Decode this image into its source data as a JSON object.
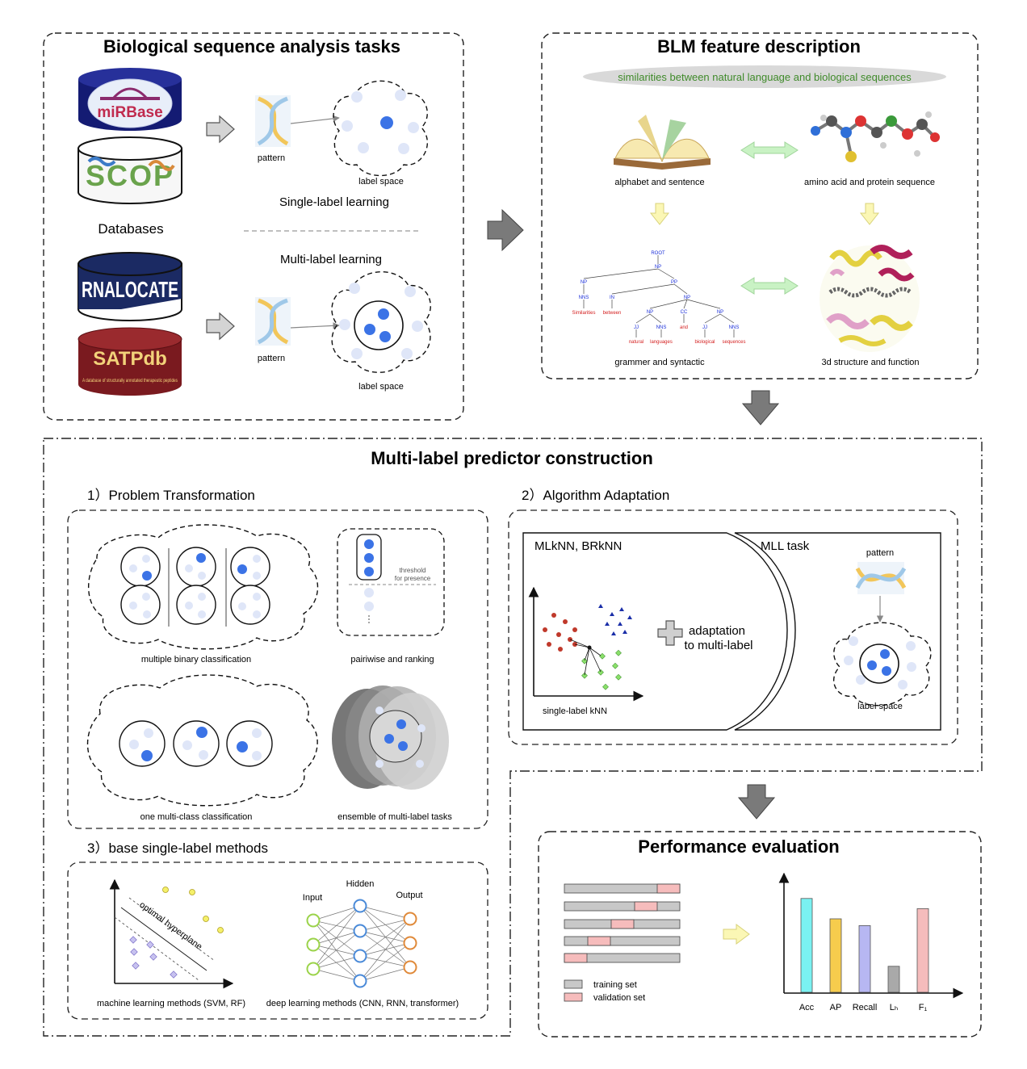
{
  "colors": {
    "dark_blue": "#3b73e6",
    "light_blue": "#dfe6f8",
    "arrow_gray": "#777777",
    "green_arrow": "#c9f2c4",
    "yellow_arrow": "#fbf7b5",
    "train_gray": "#c8c8c8",
    "valid_pink": "#f6bcbc",
    "bar_colors": [
      "#7af1f1",
      "#f6cc4d",
      "#b7b7f2",
      "#a9a9a9",
      "#f5bcbc"
    ]
  },
  "tasks": {
    "title": "Biological sequence analysis tasks",
    "databases": {
      "heading": "Databases",
      "mirbase": "miRBase",
      "scop": "SCOP",
      "rnalocate": "RNALOCATE",
      "satpdb": "SATPdb",
      "satpdb_caption": "A database of structurally annotated therapeutic peptides"
    },
    "single_pattern": "pattern",
    "single_space": "label space",
    "single_caption": "Single-label learning",
    "multi_caption": "Multi-label learning",
    "multi_pattern": "pattern",
    "multi_space": "label space"
  },
  "blm": {
    "title": "BLM feature description",
    "banner": "similarities between natural language and biological sequences",
    "book_label": "alphabet and sentence",
    "molecule_label": "amino acid and protein sequence",
    "grammar_label": "grammer and syntactic",
    "structure_label": "3d structure and function",
    "tree": {
      "root": "ROOT",
      "np": "NP",
      "pp": "PP",
      "np2": "NP",
      "nns": "NNS",
      "in": "IN",
      "np3": "NP",
      "cc": "CC",
      "np4": "NP",
      "jj": "JJ",
      "nns2": "NNS",
      "jj2": "JJ",
      "nns3": "NNS",
      "w1": "Similarities",
      "w2": "between",
      "w3": "natural",
      "w4": "languages",
      "w5": "and",
      "w6": "biological",
      "w7": "sequences"
    }
  },
  "predictor": {
    "title": "Multi-label predictor construction",
    "pt": {
      "heading": "1）Problem Transformation",
      "binary": "multiple binary classification",
      "pairwise": "pairiwise and ranking",
      "threshold": [
        "threshold",
        "for presence"
      ],
      "multiclass": "one multi-class classification",
      "ensemble": "ensemble of multi-label tasks"
    },
    "aa": {
      "heading": "2）Algorithm Adaptation",
      "methods": "MLkNN, BRkNN",
      "adaptation": [
        "adaptation",
        "to multi-label"
      ],
      "knn_label": "single-label kNN",
      "mll_task": "MLL task",
      "pattern": "pattern",
      "space": "label space"
    },
    "base": {
      "heading": "3）base single-label methods",
      "hyperplane": "optimal hyperplane",
      "ml_caption": "machine learning methods (SVM, RF)",
      "input": "Input",
      "hidden": "Hidden",
      "output": "Output",
      "dl_caption": "deep learning methods (CNN, RNN, transformer)"
    }
  },
  "evaluation": {
    "title": "Performance evaluation",
    "legend_train": "training set",
    "legend_valid": "validation set"
  },
  "chart_data": {
    "type": "bar",
    "title": "",
    "xlabel": "",
    "ylabel": "",
    "categories": [
      "Acc",
      "AP",
      "Recall",
      "Lₕ",
      "F₁"
    ],
    "values": [
      0.83,
      0.65,
      0.59,
      0.23,
      0.74
    ],
    "ylim": [
      0,
      1
    ],
    "axis_ticks": false,
    "grid": false,
    "legend": "none"
  }
}
